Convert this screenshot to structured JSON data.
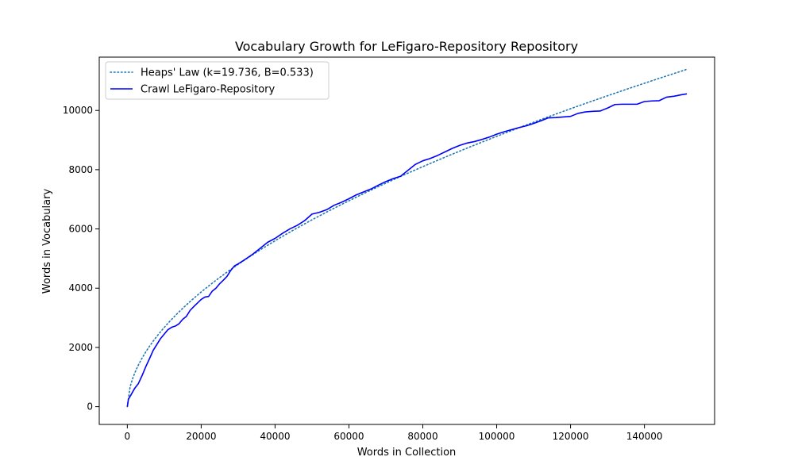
{
  "chart_data": {
    "type": "line",
    "title": "Vocabulary Growth for LeFigaro-Repository Repository",
    "xlabel": "Words in Collection",
    "ylabel": "Words in Vocabulary",
    "xlim": [
      -7600,
      159000
    ],
    "ylim": [
      -600,
      11800
    ],
    "x_ticks": [
      0,
      20000,
      40000,
      60000,
      80000,
      100000,
      120000,
      140000
    ],
    "x_tick_labels": [
      "0",
      "20000",
      "40000",
      "60000",
      "80000",
      "100000",
      "120000",
      "140000"
    ],
    "y_ticks": [
      0,
      2000,
      4000,
      6000,
      8000,
      10000
    ],
    "y_tick_labels": [
      "0",
      "2000",
      "4000",
      "6000",
      "8000",
      "10000"
    ],
    "grid": false,
    "legend_position": "upper-left",
    "series": [
      {
        "name": "Heaps' Law (k=19.736, B=0.533)",
        "style": "dotted",
        "color": "#1f77b4",
        "model": {
          "k": 19.736,
          "B": 0.533,
          "x_min": 0,
          "x_max": 151500,
          "points": 200
        }
      },
      {
        "name": "Crawl LeFigaro-Repository",
        "style": "solid",
        "color": "#0000ff",
        "x": [
          0,
          300,
          1000,
          2000,
          3000,
          4000,
          5000,
          6000,
          7000,
          8000,
          9000,
          10000,
          11000,
          12000,
          13000,
          14000,
          15000,
          16000,
          17000,
          18000,
          19000,
          20000,
          21000,
          22000,
          23000,
          24000,
          25000,
          26000,
          27000,
          28000,
          29000,
          30000,
          31000,
          32000,
          34000,
          36000,
          38000,
          40000,
          42000,
          44000,
          46000,
          48000,
          50000,
          52000,
          54000,
          56000,
          58000,
          60000,
          62000,
          64000,
          66000,
          68000,
          70000,
          72000,
          74000,
          76000,
          78000,
          80000,
          82000,
          84000,
          86000,
          88000,
          90000,
          92000,
          94000,
          96000,
          98000,
          100000,
          102000,
          104000,
          106000,
          108000,
          110000,
          112000,
          114000,
          116000,
          118000,
          120000,
          122000,
          124000,
          126000,
          128000,
          130000,
          132000,
          134000,
          136000,
          138000,
          140000,
          142000,
          144000,
          146000,
          148000,
          150000,
          151500
        ],
        "y": [
          0,
          250,
          400,
          620,
          780,
          1050,
          1350,
          1620,
          1900,
          2100,
          2300,
          2450,
          2600,
          2680,
          2720,
          2800,
          2950,
          3050,
          3250,
          3380,
          3500,
          3620,
          3700,
          3720,
          3900,
          4000,
          4150,
          4270,
          4400,
          4600,
          4750,
          4820,
          4900,
          4980,
          5150,
          5350,
          5550,
          5680,
          5850,
          6000,
          6120,
          6280,
          6500,
          6560,
          6650,
          6800,
          6900,
          7020,
          7150,
          7250,
          7350,
          7480,
          7600,
          7700,
          7780,
          7980,
          8180,
          8300,
          8380,
          8480,
          8600,
          8720,
          8820,
          8900,
          8950,
          9020,
          9100,
          9200,
          9280,
          9350,
          9420,
          9480,
          9560,
          9650,
          9750,
          9760,
          9780,
          9800,
          9900,
          9950,
          9970,
          9980,
          10080,
          10200,
          10210,
          10210,
          10210,
          10300,
          10320,
          10330,
          10450,
          10480,
          10530,
          10560
        ]
      }
    ]
  }
}
